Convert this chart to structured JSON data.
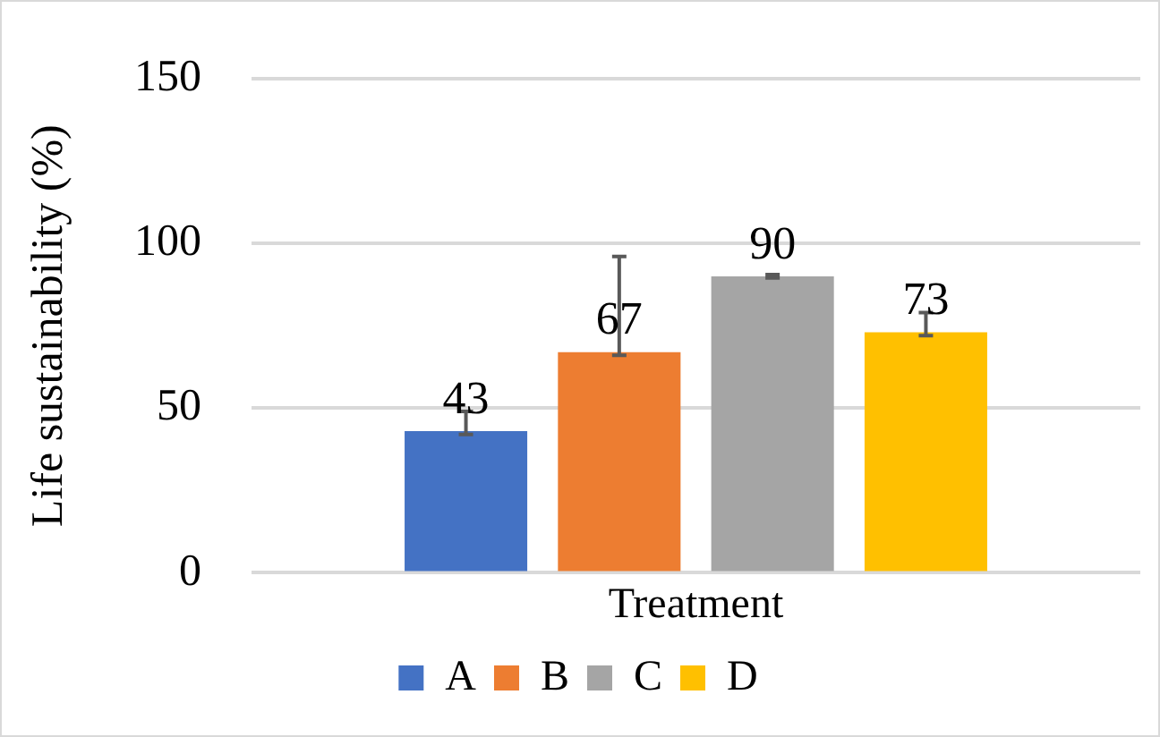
{
  "chart_data": {
    "type": "bar",
    "ylabel": "Life sustainability (%)",
    "categories": [
      "Treatment"
    ],
    "series": [
      {
        "name": "A",
        "color": "#4472c4",
        "values": [
          43
        ],
        "errors": [
          [
            42,
            49
          ]
        ]
      },
      {
        "name": "B",
        "color": "#ed7d31",
        "values": [
          67
        ],
        "errors": [
          [
            66,
            96
          ]
        ]
      },
      {
        "name": "C",
        "color": "#a5a5a5",
        "values": [
          90
        ],
        "errors": [
          [
            89.5,
            90.5
          ]
        ]
      },
      {
        "name": "D",
        "color": "#ffc000",
        "values": [
          73
        ],
        "errors": [
          [
            72,
            79
          ]
        ]
      }
    ],
    "ylim": [
      0,
      150
    ],
    "yticks": [
      0,
      50,
      100,
      150
    ],
    "grid": "y",
    "legend": "bottom",
    "data_labels": true
  }
}
